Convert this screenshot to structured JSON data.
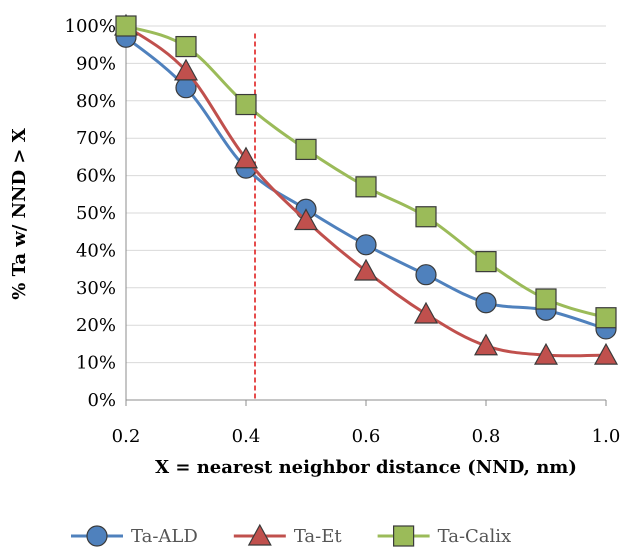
{
  "chart_data": {
    "type": "line",
    "xlabel": "X = nearest neighbor distance (NND, nm)",
    "ylabel": "% Ta w/ NND > X",
    "xlim": [
      0.2,
      1.0
    ],
    "ylim": [
      0,
      100
    ],
    "x_ticks": [
      "0.2",
      "0.4",
      "0.6",
      "0.8",
      "1.0"
    ],
    "y_ticks": [
      "0%",
      "10%",
      "20%",
      "30%",
      "40%",
      "50%",
      "60%",
      "70%",
      "80%",
      "90%",
      "100%"
    ],
    "grid": "horizontal",
    "legend_position": "bottom",
    "reference_line": {
      "x": 0.415,
      "style": "dashed",
      "color": "#e02020"
    },
    "x": [
      0.2,
      0.3,
      0.4,
      0.5,
      0.6,
      0.7,
      0.8,
      0.9,
      1.0
    ],
    "series": [
      {
        "name": "Ta-ALD",
        "marker": "circle",
        "color": "#4f81bd",
        "line_color": "#4f81bd",
        "values": [
          97,
          83.5,
          62,
          51,
          41.5,
          33.5,
          26,
          24,
          19
        ]
      },
      {
        "name": "Ta-Et",
        "marker": "triangle",
        "color": "#c0504d",
        "line_color": "#c0504d",
        "values": [
          100,
          88,
          64.5,
          48,
          34.5,
          23,
          14.5,
          12,
          12
        ]
      },
      {
        "name": "Ta-Calix",
        "marker": "square",
        "color": "#9bbb59",
        "line_color": "#9bbb59",
        "values": [
          100,
          94.5,
          79,
          67,
          57,
          49,
          37,
          27,
          22
        ]
      }
    ]
  }
}
